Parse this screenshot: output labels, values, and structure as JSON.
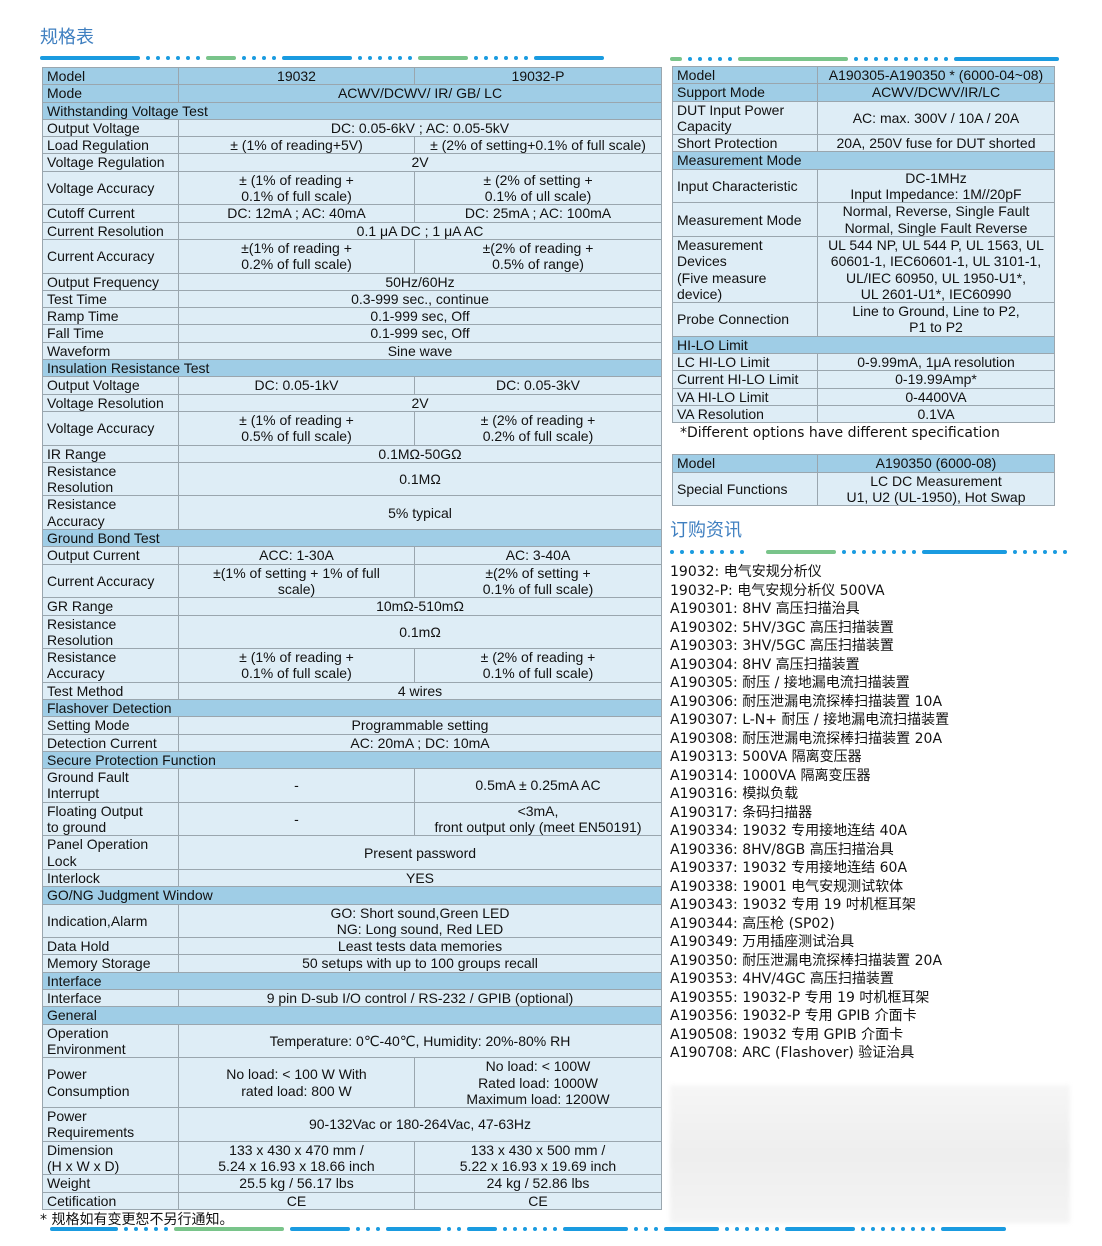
{
  "spec_title": "规格表",
  "order_title": "订购资讯",
  "left_table": [
    {
      "type": "hdr3",
      "label": "Model",
      "v1": "19032",
      "v2": "19032-P"
    },
    {
      "type": "hdr",
      "label": "Mode",
      "value": "ACWV/DCWV/ IR/ GB/ LC"
    },
    {
      "type": "sec",
      "label": "Withstanding Voltage Test"
    },
    {
      "label": "Output Voltage",
      "value": "DC: 0.05-6kV ; AC: 0.05-5kV"
    },
    {
      "label": "Load Regulation",
      "v1": "± (1% of reading+5V)",
      "v2": "± (2% of setting+0.1% of full scale)"
    },
    {
      "label": "Voltage Regulation",
      "value": "2V"
    },
    {
      "label": "Voltage Accuracy",
      "v1": "± (1% of reading +\n0.1% of full scale)",
      "v2": "± (2% of setting +\n0.1% of ull scale)"
    },
    {
      "label": "Cutoff Current",
      "v1": "DC: 12mA ; AC: 40mA",
      "v2": "DC: 25mA ; AC: 100mA"
    },
    {
      "label": "Current Resolution",
      "value": "0.1 μA DC ; 1 μA AC"
    },
    {
      "label": "Current Accuracy",
      "v1": "±(1% of reading +\n0.2% of full scale)",
      "v2": "±(2% of reading +\n0.5% of range)"
    },
    {
      "label": "Output Frequency",
      "value": "50Hz/60Hz"
    },
    {
      "label": "Test Time",
      "value": "0.3-999 sec., continue"
    },
    {
      "label": "Ramp Time",
      "value": "0.1-999 sec, Off"
    },
    {
      "label": "Fall Time",
      "value": "0.1-999 sec, Off"
    },
    {
      "label": "Waveform",
      "value": "Sine wave"
    },
    {
      "type": "sec",
      "label": "Insulation Resistance Test"
    },
    {
      "label": "Output Voltage",
      "v1": "DC: 0.05-1kV",
      "v2": "DC: 0.05-3kV"
    },
    {
      "label": "Voltage Resolution",
      "value": "2V"
    },
    {
      "label": "Voltage Accuracy",
      "v1": "± (1% of reading +\n0.5% of full scale)",
      "v2": "± (2% of reading +\n0.2% of full scale)"
    },
    {
      "label": "IR Range",
      "value": "0.1MΩ-50GΩ"
    },
    {
      "label": "Resistance\nResolution",
      "value": "0.1MΩ"
    },
    {
      "label": "Resistance\nAccuracy",
      "value": "5% typical"
    },
    {
      "type": "sec",
      "label": "Ground Bond Test"
    },
    {
      "label": "Output Current",
      "v1": "ACC: 1-30A",
      "v2": "AC: 3-40A"
    },
    {
      "label": "Current Accuracy",
      "v1": "±(1% of setting + 1% of full\nscale)",
      "v2": "±(2% of setting +\n0.1% of full scale)"
    },
    {
      "label": "GR Range",
      "value": "10mΩ-510mΩ"
    },
    {
      "label": "Resistance\nResolution",
      "value": "0.1mΩ"
    },
    {
      "label": "Resistance\nAccuracy",
      "v1": "± (1% of reading +\n0.1% of full scale)",
      "v2": "± (2% of reading +\n0.1% of full scale)"
    },
    {
      "label": "Test Method",
      "value": "4 wires"
    },
    {
      "type": "sec",
      "label": "Flashover Detection"
    },
    {
      "label": "Setting Mode",
      "value": "Programmable setting"
    },
    {
      "label": "Detection Current",
      "value": "AC: 20mA ; DC: 10mA"
    },
    {
      "type": "sec",
      "label": "Secure Protection Function"
    },
    {
      "label": "Ground Fault\nInterrupt",
      "v1": "-",
      "v2": "0.5mA ± 0.25mA AC"
    },
    {
      "label": "Floating Output\nto ground",
      "v1": "-",
      "v2": "<3mA,\nfront output only (meet EN50191)"
    },
    {
      "label": "Panel Operation\nLock",
      "value": "Present password"
    },
    {
      "label": "Interlock",
      "value": "YES"
    },
    {
      "type": "sec",
      "label": "GO/NG Judgment Window"
    },
    {
      "label": "Indication,Alarm",
      "value": "GO: Short sound,Green LED\nNG: Long sound, Red LED"
    },
    {
      "label": "Data Hold",
      "value": "Least tests data memories"
    },
    {
      "label": "Memory Storage",
      "value": "50 setups with up to 100 groups recall"
    },
    {
      "type": "sec",
      "label": "Interface"
    },
    {
      "label": "Interface",
      "value": "9 pin D-sub I/O control / RS-232 / GPIB (optional)"
    },
    {
      "type": "sec",
      "label": "General"
    },
    {
      "label": "Operation\nEnvironment",
      "value": "Temperature: 0℃-40℃, Humidity: 20%-80% RH"
    },
    {
      "label": "Power\nConsumption",
      "v1": "No load: < 100 W With\nrated load: 800 W",
      "v2": "No load: < 100W\nRated load: 1000W\nMaximum load: 1200W"
    },
    {
      "label": "Power\nRequirements",
      "value": "90-132Vac or 180-264Vac, 47-63Hz"
    },
    {
      "label": "Dimension\n(H x W x D)",
      "v1": "133 x 430 x 470 mm /\n5.24 x 16.93 x 18.66 inch",
      "v2": "133 x 430 x 500 mm /\n5.22 x 16.93 x 19.69 inch"
    },
    {
      "label": "Weight",
      "v1": "25.5 kg / 56.17 lbs",
      "v2": "24 kg / 52.86 lbs"
    },
    {
      "label": "Cetification",
      "v1": "CE",
      "v2": "CE"
    }
  ],
  "left_note": "* 规格如有变更恕不另行通知。",
  "right_table": [
    {
      "type": "hdr",
      "label": "Model",
      "value": "A190305-A190350 * (6000-04~08)"
    },
    {
      "type": "hdr",
      "label": "Support Mode",
      "value": "ACWV/DCWV/IR/LC"
    },
    {
      "label": "DUT Input Power\nCapacity",
      "value": "AC: max. 300V / 10A / 20A"
    },
    {
      "label": "Short Protection",
      "value": "20A, 250V fuse for DUT shorted"
    },
    {
      "type": "sec",
      "label": "Measurement Mode"
    },
    {
      "label": "Input Characteristic",
      "value": "DC-1MHz\nInput Impedance: 1M//20pF"
    },
    {
      "label": "Measurement Mode",
      "value": "Normal, Reverse, Single Fault\nNormal, Single Fault Reverse"
    },
    {
      "label": "Measurement\nDevices\n(Five measure\ndevice)",
      "value": "UL 544 NP, UL 544 P, UL 1563, UL\n60601-1, IEC60601-1, UL 3101-1,\nUL/IEC 60950, UL 1950-U1*,\nUL 2601-U1*, IEC60990"
    },
    {
      "label": "Probe Connection",
      "value": "Line to Ground, Line to P2,\nP1 to P2"
    },
    {
      "type": "sec",
      "label": "HI-LO Limit"
    },
    {
      "label": "LC HI-LO Limit",
      "value": "0-9.99mA, 1μA resolution"
    },
    {
      "label": "Current HI-LO Limit",
      "value": "0-19.99Amp*"
    },
    {
      "label": "VA HI-LO Limit",
      "value": "0-4400VA"
    },
    {
      "label": "VA Resolution",
      "value": "0.1VA"
    }
  ],
  "right_note": "*Different options have different specification",
  "right_table2": [
    {
      "type": "hdr",
      "label": "Model",
      "value": "A190350 (6000-08)"
    },
    {
      "label": "Special Functions",
      "value": "LC DC Measurement\nU1, U2 (UL-1950), Hot Swap"
    }
  ],
  "order_items": [
    "19032: 电气安规分析仪",
    "19032-P: 电气安规分析仪 500VA",
    "A190301: 8HV 高压扫描治具",
    "A190302: 5HV/3GC 高压扫描装置",
    "A190303: 3HV/5GC 高压扫描装置",
    "A190304: 8HV 高压扫描装置",
    "A190305: 耐压 / 接地漏电流扫描装置",
    "A190306: 耐压泄漏电流探棒扫描装置 10A",
    "A190307: L-N+ 耐压 / 接地漏电流扫描装置",
    "A190308: 耐压泄漏电流探棒扫描装置 20A",
    "A190313: 500VA 隔离变压器",
    "A190314: 1000VA 隔离变压器",
    "A190316: 模拟负载",
    "A190317: 条码扫描器",
    "A190334: 19032 专用接地连结 40A",
    "A190336: 8HV/8GB 高压扫描治具",
    "A190337: 19032 专用接地连结 60A",
    "A190338: 19001 电气安规测试软体",
    "A190343: 19032 专用 19 吋机框耳架",
    "A190344: 高压枪 (SP02)",
    "A190349: 万用插座测试治具",
    "A190350: 耐压泄漏电流探棒扫描装置 20A",
    "A190353: 4HV/4GC 高压扫描装置",
    "A190355: 19032-P 专用 19 吋机框耳架",
    "A190356: 19032-P 专用 GPIB 介面卡",
    "A190508: 19032 专用 GPIB 介面卡",
    "A190708: ARC (Flashover) 验证治具"
  ],
  "colors": {
    "title": "#3f7fc0",
    "header_row": "#9fcde6",
    "cell": "#deedf6",
    "deco_blue": "#1a9be0",
    "deco_green": "#79c48a"
  }
}
